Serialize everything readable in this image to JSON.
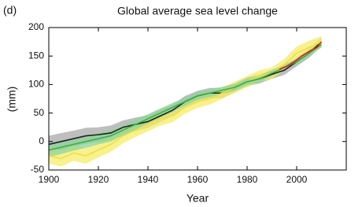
{
  "chart_data": {
    "type": "line",
    "panel_label": "(d)",
    "title": "Global average sea level change",
    "x_label": "Year",
    "y_label": "(mm)",
    "xlim": [
      1900,
      2020
    ],
    "xticks": [
      1900,
      1920,
      1940,
      1960,
      1980,
      2000
    ],
    "ylim": [
      -50,
      200
    ],
    "yticks": [
      -50,
      0,
      50,
      100,
      150,
      200
    ],
    "series": [
      {
        "color": "#222222",
        "band_color": "#a8a8a8",
        "x": [
          1900,
          1905,
          1910,
          1915,
          1920,
          1925,
          1930,
          1935,
          1940,
          1945,
          1950,
          1955,
          1960,
          1965,
          1970,
          1975,
          1980,
          1985,
          1990,
          1995,
          2000,
          2005,
          2010
        ],
        "values": [
          -5,
          0,
          5,
          10,
          12,
          15,
          25,
          30,
          35,
          45,
          55,
          70,
          80,
          85,
          85,
          95,
          105,
          110,
          118,
          125,
          140,
          155,
          175
        ],
        "uncertainty": [
          15,
          15,
          14,
          14,
          13,
          13,
          12,
          12,
          11,
          11,
          10,
          10,
          9,
          9,
          9,
          8,
          8,
          8,
          8,
          8,
          8,
          8,
          8
        ]
      },
      {
        "color": "#f0e03c",
        "band_color": "#f4ec6a",
        "x": [
          1900,
          1905,
          1910,
          1915,
          1920,
          1925,
          1930,
          1935,
          1940,
          1945,
          1950,
          1955,
          1960,
          1965,
          1970,
          1975,
          1980,
          1985,
          1990,
          1995,
          2000,
          2005,
          2010
        ],
        "values": [
          -25,
          -30,
          -20,
          -25,
          -15,
          -5,
          10,
          20,
          30,
          40,
          45,
          60,
          70,
          75,
          85,
          95,
          105,
          115,
          120,
          135,
          155,
          165,
          175
        ],
        "uncertainty": [
          14,
          14,
          14,
          14,
          13,
          13,
          13,
          12,
          12,
          12,
          11,
          11,
          11,
          10,
          10,
          10,
          10,
          10,
          10,
          10,
          12,
          12,
          10
        ]
      },
      {
        "color": "#3cb044",
        "band_color": "#8ed49a",
        "x": [
          1900,
          1905,
          1910,
          1915,
          1920,
          1925,
          1930,
          1935,
          1940,
          1945,
          1950,
          1955,
          1960,
          1965,
          1970,
          1975,
          1980,
          1985,
          1990,
          1995,
          2000,
          2005,
          2010
        ],
        "values": [
          -15,
          -10,
          -5,
          0,
          5,
          10,
          20,
          30,
          40,
          50,
          60,
          70,
          80,
          85,
          90,
          95,
          105,
          110,
          120,
          130,
          140,
          155,
          170
        ],
        "uncertainty": [
          12,
          12,
          11,
          11,
          10,
          10,
          9,
          9,
          8,
          8,
          8,
          7,
          7,
          7,
          6,
          6,
          6,
          6,
          5,
          5,
          5,
          5,
          5
        ]
      },
      {
        "color": "#d62020",
        "x": [
          1993,
          1996,
          1999,
          2002,
          2005,
          2008,
          2010
        ],
        "values": [
          127,
          132,
          140,
          150,
          158,
          165,
          175
        ]
      }
    ]
  }
}
